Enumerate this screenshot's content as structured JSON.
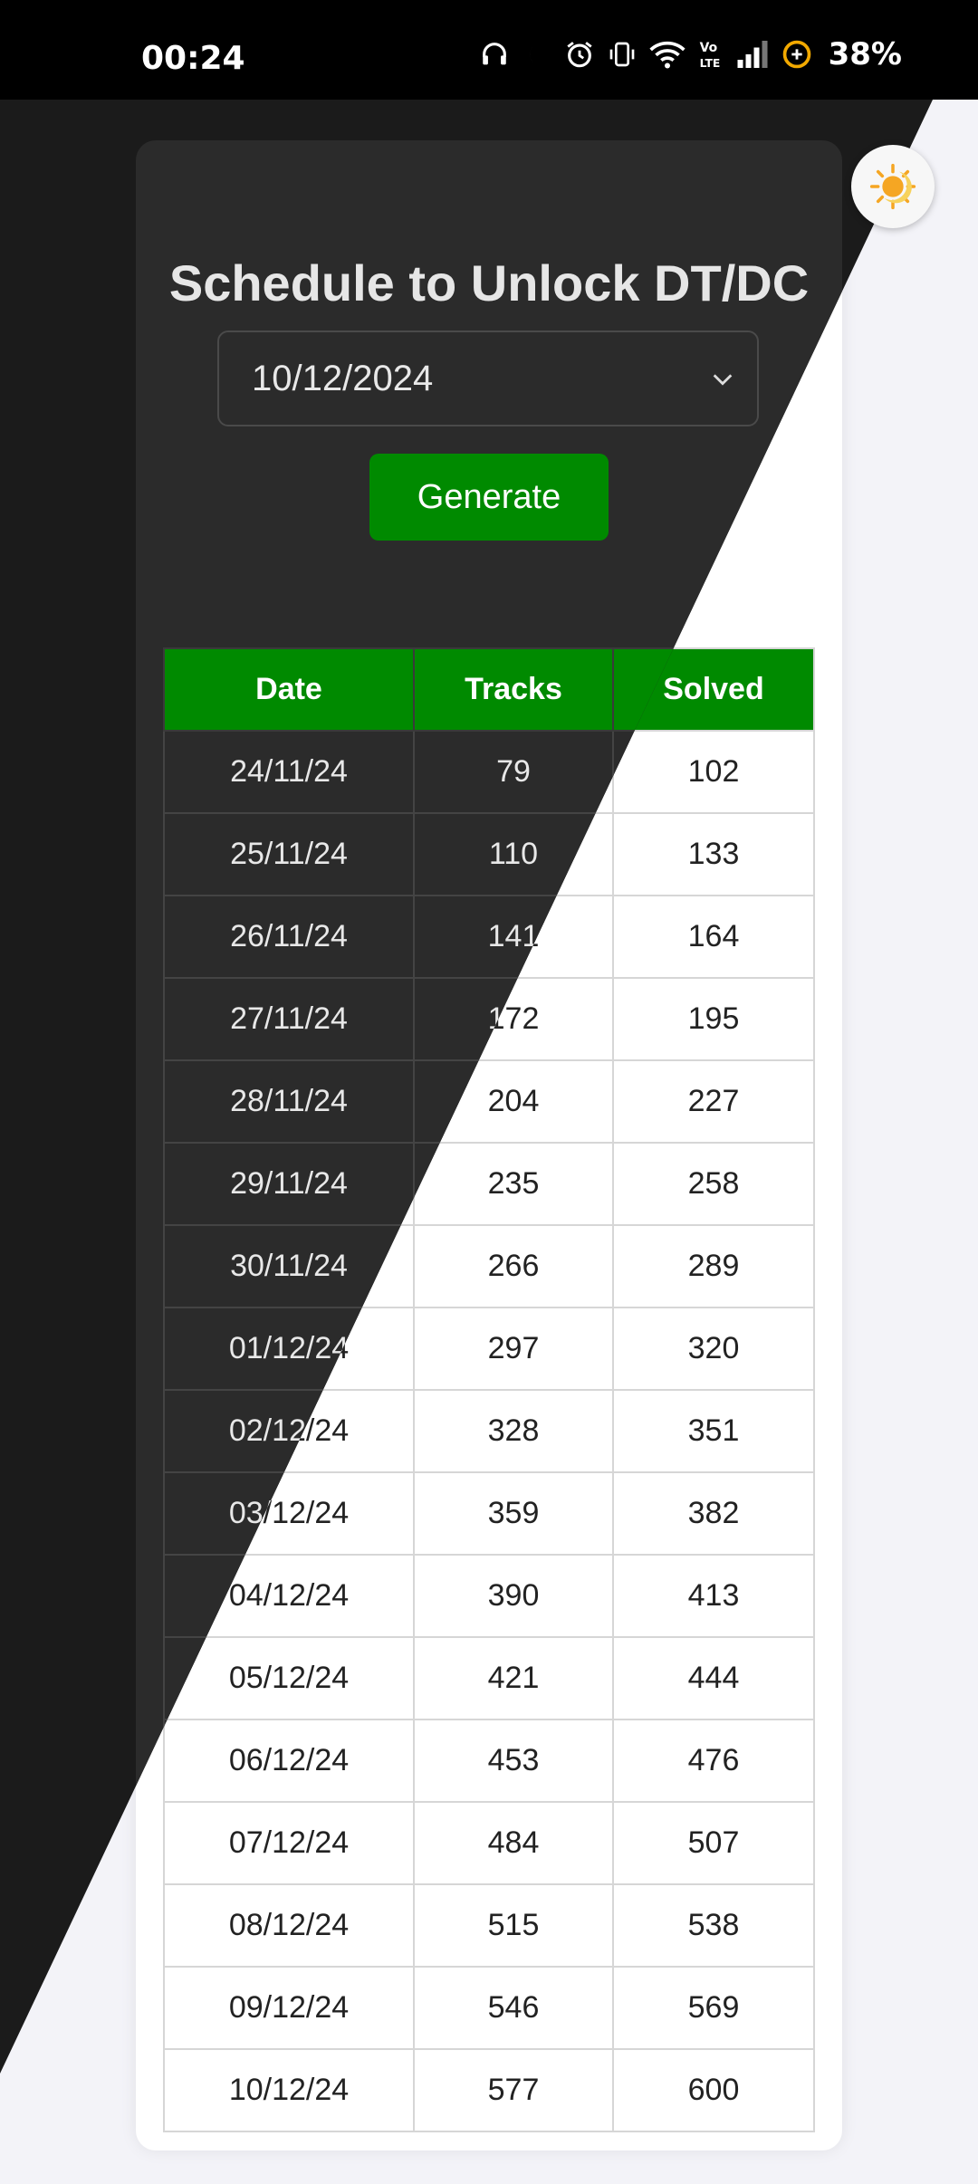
{
  "status": {
    "time": "00:24",
    "battery": "38%",
    "icons": [
      "headphones-icon",
      "moon-icon",
      "alarm-icon",
      "vibrate-icon",
      "wifi-icon",
      "volte-icon",
      "signal-icon",
      "battery-saver-icon"
    ]
  },
  "page": {
    "title": "Schedule to Unlock DT/DC",
    "date_value": "10/12/2024",
    "generate_label": "Generate",
    "theme_toggle_icon": "sun-moon-icon"
  },
  "table": {
    "headers": [
      "Date",
      "Tracks",
      "Solved"
    ],
    "rows": [
      [
        "24/11/24",
        "79",
        "102"
      ],
      [
        "25/11/24",
        "110",
        "133"
      ],
      [
        "26/11/24",
        "141",
        "164"
      ],
      [
        "27/11/24",
        "172",
        "195"
      ],
      [
        "28/11/24",
        "204",
        "227"
      ],
      [
        "29/11/24",
        "235",
        "258"
      ],
      [
        "30/11/24",
        "266",
        "289"
      ],
      [
        "01/12/24",
        "297",
        "320"
      ],
      [
        "02/12/24",
        "328",
        "351"
      ],
      [
        "03/12/24",
        "359",
        "382"
      ],
      [
        "04/12/24",
        "390",
        "413"
      ],
      [
        "05/12/24",
        "421",
        "444"
      ],
      [
        "06/12/24",
        "453",
        "476"
      ],
      [
        "07/12/24",
        "484",
        "507"
      ],
      [
        "08/12/24",
        "515",
        "538"
      ],
      [
        "09/12/24",
        "546",
        "569"
      ],
      [
        "10/12/24",
        "577",
        "600"
      ]
    ]
  },
  "colors": {
    "accent_green": "#008a00",
    "dark_bg": "#1b1b1b",
    "dark_card": "#2b2b2b",
    "light_bg": "#f3f3f8",
    "light_card": "#ffffff"
  }
}
